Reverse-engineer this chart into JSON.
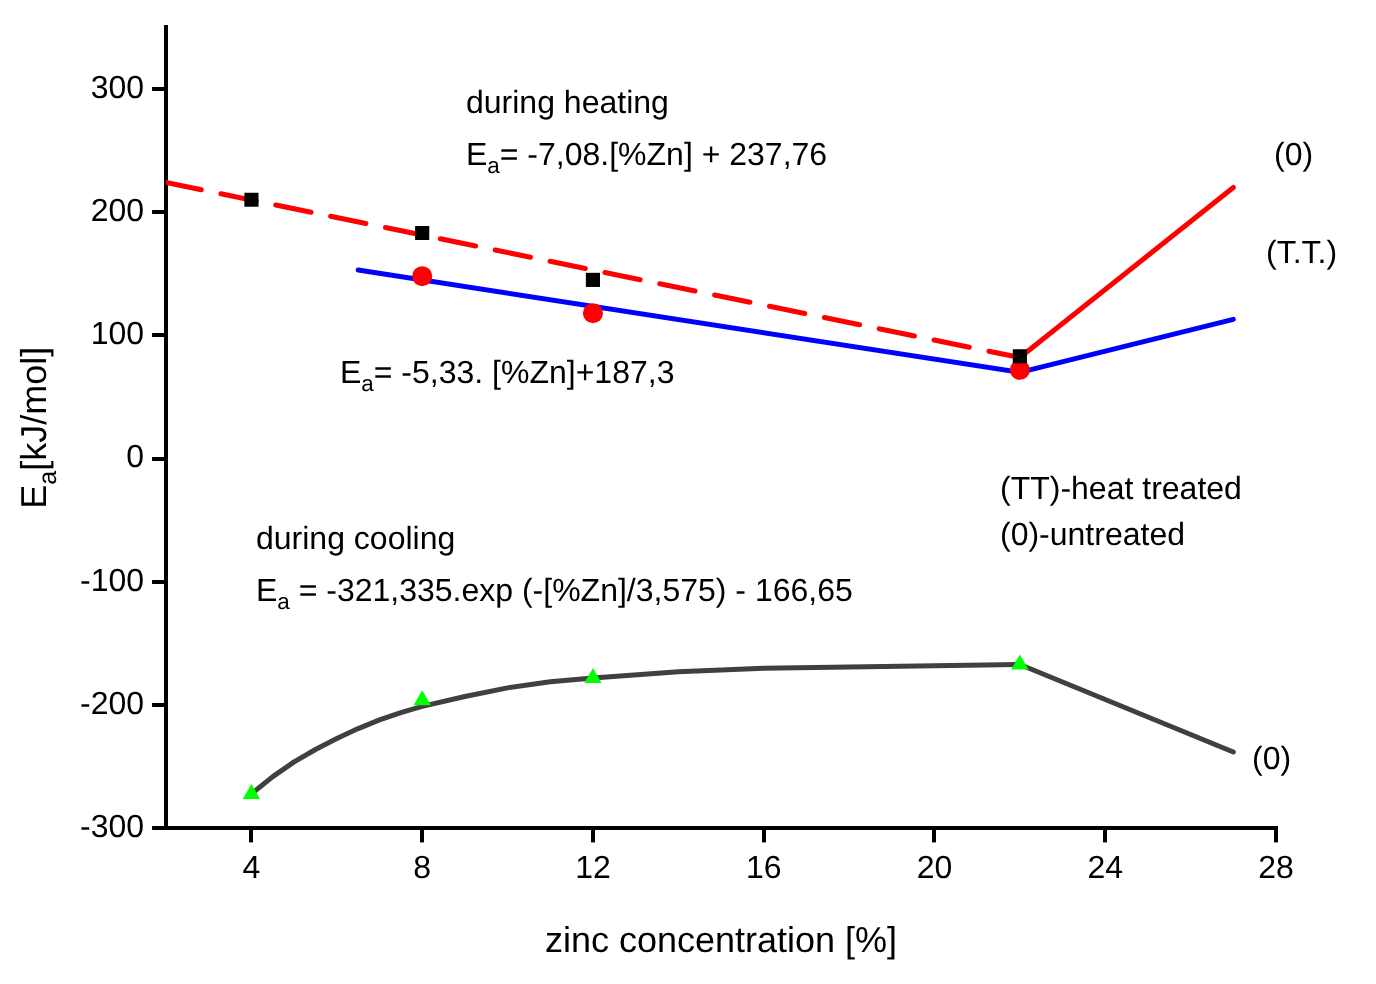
{
  "chart_data": {
    "type": "line",
    "xlabel": "zinc concentration [%]",
    "ylabel": "E$_{a}$[kJ/mol]",
    "xlim": [
      2,
      28
    ],
    "xticks": [
      4,
      8,
      12,
      16,
      20,
      24,
      28
    ],
    "ylim": [
      -300,
      350
    ],
    "yticks": [
      -300,
      -200,
      -100,
      0,
      100,
      200,
      300
    ],
    "grid": false,
    "legend": false,
    "series": [
      {
        "type": "line",
        "color": "#ff0000",
        "line_style": "dashed",
        "marker": "none",
        "x": [
          2,
          22
        ],
        "values": [
          224,
          82
        ]
      },
      {
        "type": "line",
        "color": "#ff0000",
        "line_style": "solid",
        "marker": "none",
        "x": [
          22,
          27
        ],
        "values": [
          82,
          220
        ]
      },
      {
        "type": "line",
        "color": "#0000ff",
        "line_style": "solid",
        "marker": "none",
        "x": [
          6.5,
          22,
          27
        ],
        "values": [
          153,
          70,
          113
        ]
      },
      {
        "type": "line",
        "color": "#404040",
        "line_style": "solid",
        "marker": "none",
        "x": [
          4,
          4.5,
          5,
          5.5,
          6,
          6.5,
          7,
          7.5,
          8,
          9,
          10,
          11,
          12,
          14,
          16,
          18,
          20,
          22,
          27
        ],
        "values": [
          -272,
          -258,
          -246,
          -236,
          -227,
          -219,
          -212,
          -206,
          -201,
          -193,
          -186,
          -181,
          -178,
          -173,
          -170,
          -169,
          -168,
          -167,
          -238
        ]
      },
      {
        "type": "scatter",
        "color": "#000000",
        "marker": "square",
        "x": [
          4,
          8,
          12,
          22
        ],
        "values": [
          210,
          183,
          145,
          83
        ]
      },
      {
        "type": "scatter",
        "color": "#ff0000",
        "marker": "circle",
        "x": [
          8,
          12,
          22
        ],
        "values": [
          148,
          118,
          72
        ]
      },
      {
        "type": "scatter",
        "color": "#00ff00",
        "marker": "triangle",
        "x": [
          4,
          8,
          12,
          22
        ],
        "values": [
          -272,
          -196,
          -178,
          -167
        ]
      }
    ],
    "annotations": [
      "during heating",
      "E$_{a}$= -7,08.[%Zn] + 237,76",
      "(0)",
      "(T.T.)",
      "E$_{a}$= -5,33. [%Zn]+187,3",
      "(TT)-heat treated",
      "(0)-untreated",
      "during cooling",
      "E$_{a}$ = -321,335.exp (-[%Zn]/3,575) - 166,65",
      "(0)"
    ]
  }
}
